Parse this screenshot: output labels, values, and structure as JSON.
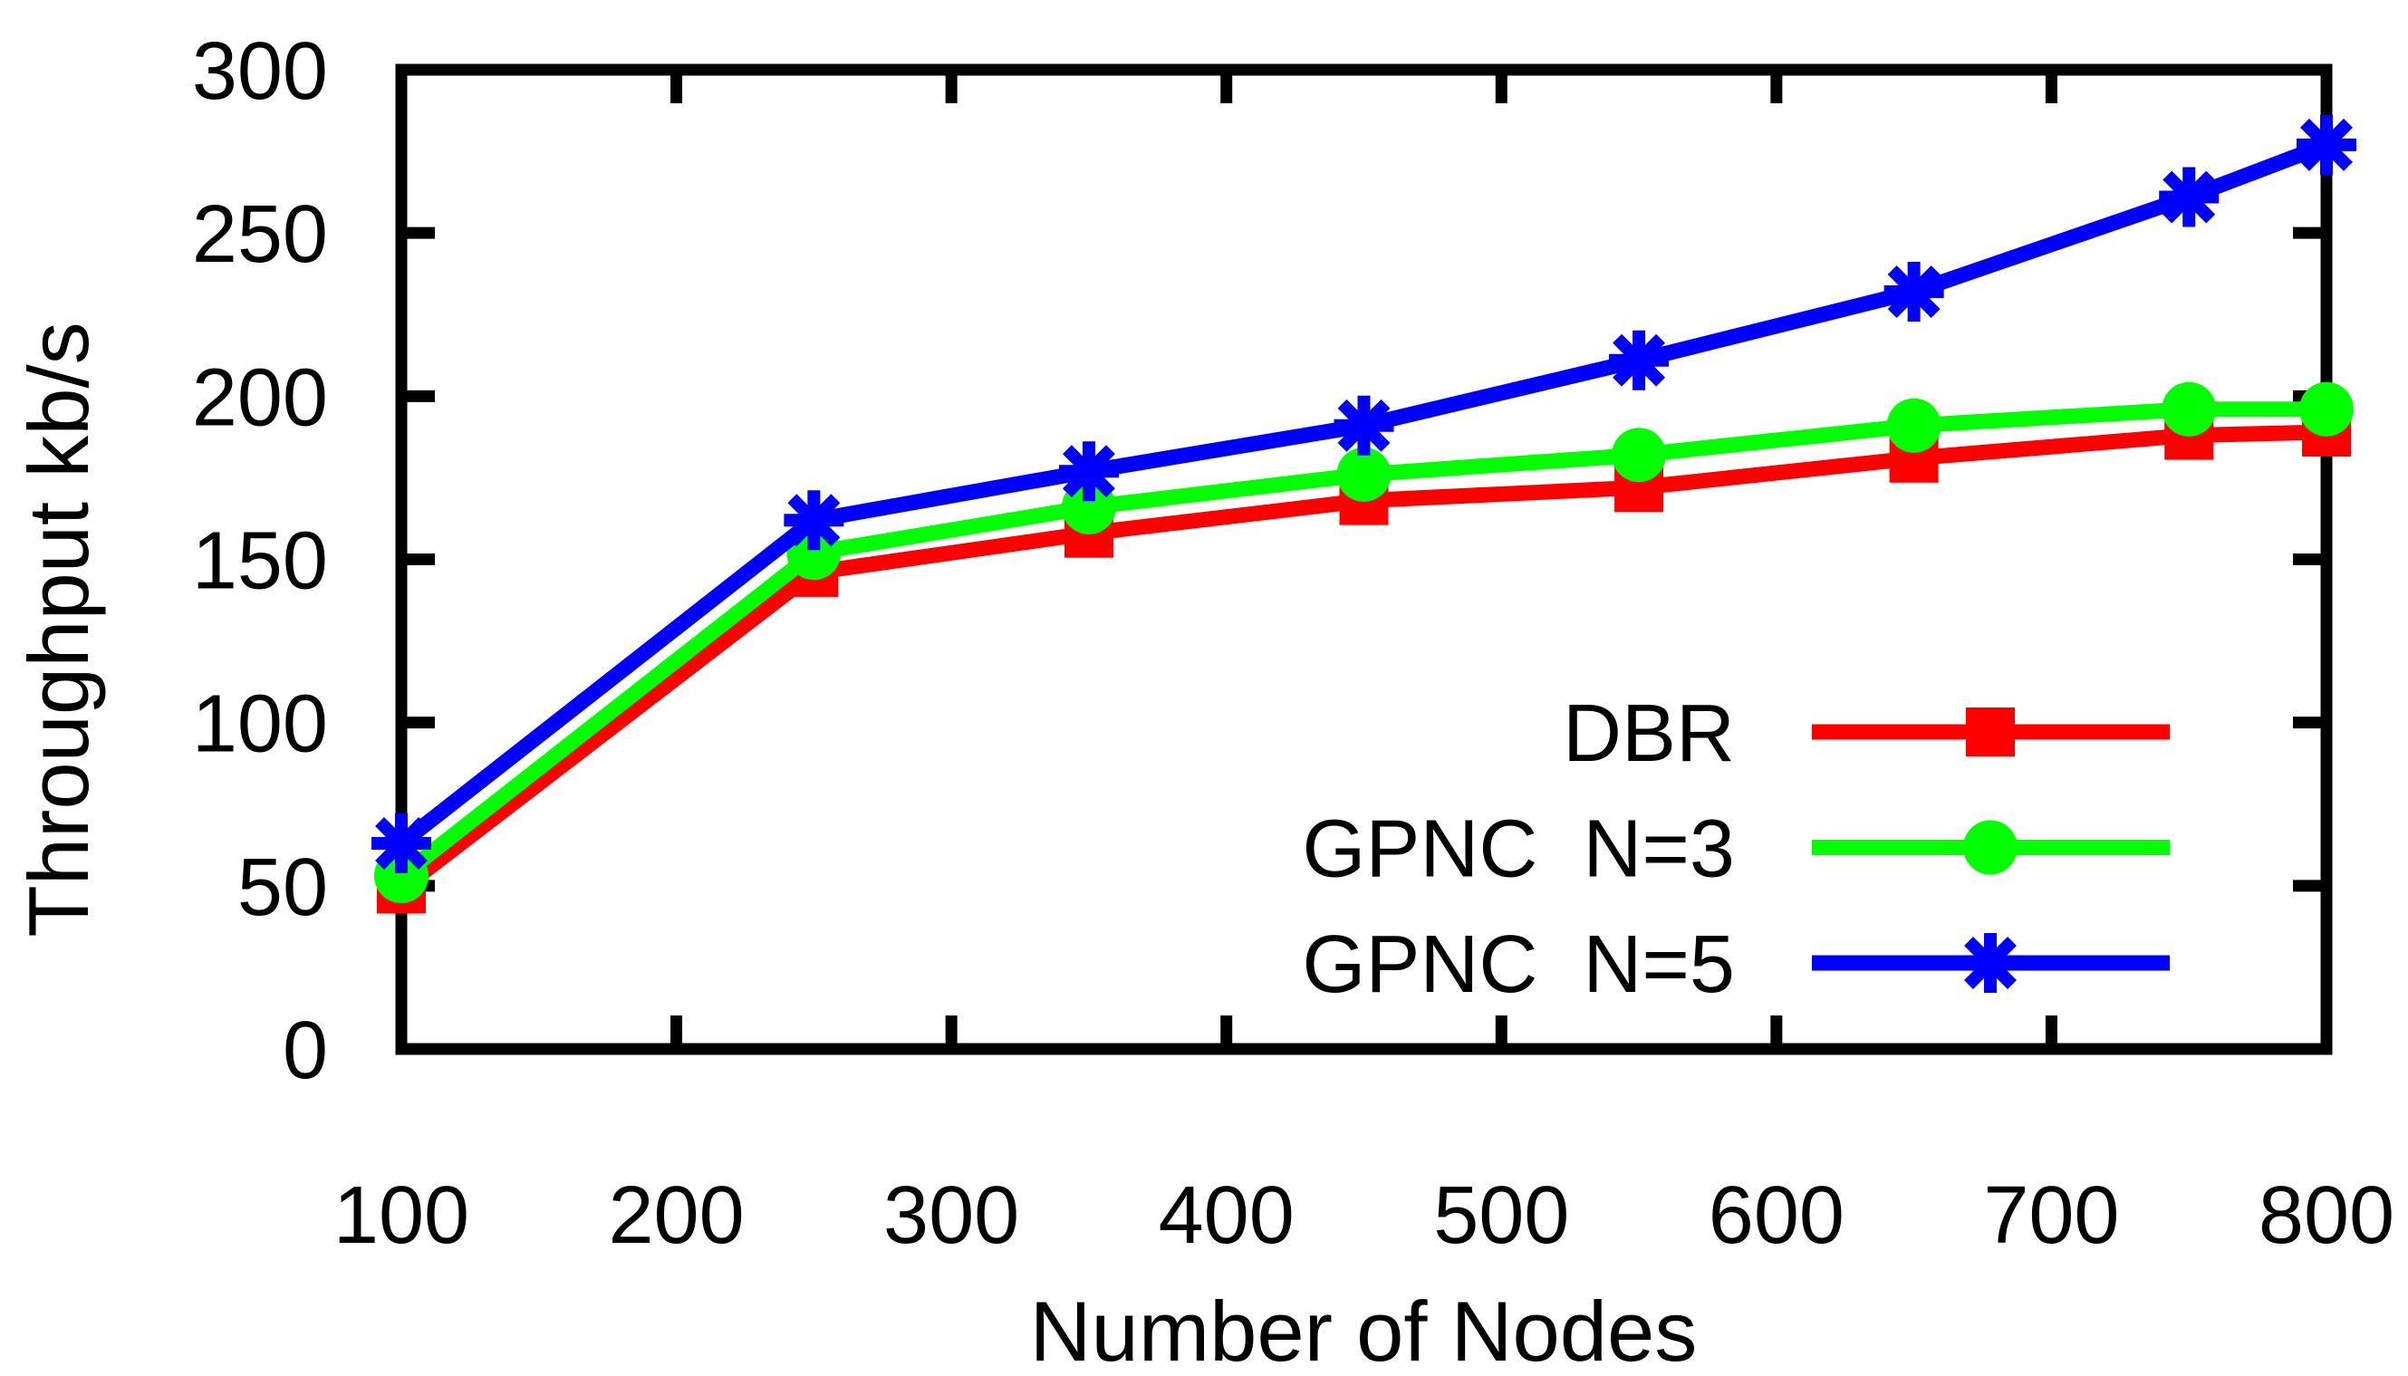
{
  "figure": {
    "background_color": "#ffffff",
    "axis_color": "#000000",
    "text_color": "#000000"
  },
  "chart_data": {
    "type": "line",
    "title": "",
    "xlabel": "Number of Nodes",
    "ylabel": "Throughput kb/s",
    "x": [
      100,
      250,
      350,
      450,
      550,
      650,
      750,
      800
    ],
    "series": [
      {
        "name": "DBR",
        "color": "#ff0000",
        "marker": "square",
        "values": [
          49,
          146,
          158,
          168,
          172,
          181,
          188,
          189
        ]
      },
      {
        "name": "GPNC  N=3",
        "color": "#00ff00",
        "marker": "circle",
        "values": [
          53,
          152,
          166,
          176,
          182,
          191,
          196,
          196
        ]
      },
      {
        "name": "GPNC  N=5",
        "color": "#0000ff",
        "marker": "star",
        "values": [
          63,
          162,
          177,
          191,
          211,
          232,
          261,
          277
        ]
      }
    ],
    "xlim": [
      100,
      800
    ],
    "ylim": [
      0,
      300
    ],
    "xticks": [
      100,
      200,
      300,
      400,
      500,
      600,
      700,
      800
    ],
    "yticks": [
      0,
      50,
      100,
      150,
      200,
      250,
      300
    ],
    "grid": false,
    "legend_position": "inside-bottom-right"
  }
}
